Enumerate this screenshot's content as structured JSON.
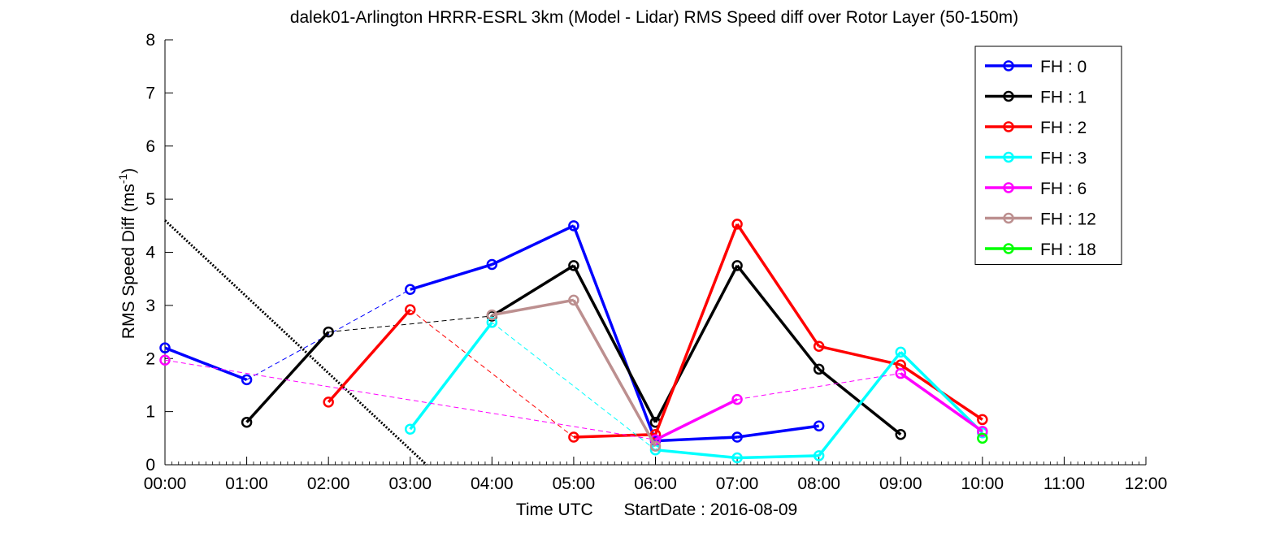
{
  "chart_data": {
    "type": "line",
    "title": "dalek01-Arlington HRRR-ESRL 3km (Model - Lidar) RMS Speed diff over Rotor Layer (50-150m)",
    "xlabel_main": "Time UTC",
    "xlabel_extra": "StartDate : 2016-08-09",
    "ylabel": "RMS Speed Diff (ms",
    "ylabel_sup": "-1",
    "ylabel_close": ")",
    "x_ticks": [
      "00:00",
      "01:00",
      "02:00",
      "03:00",
      "04:00",
      "05:00",
      "06:00",
      "07:00",
      "08:00",
      "09:00",
      "10:00",
      "11:00",
      "12:00"
    ],
    "y_ticks": [
      "0",
      "1",
      "2",
      "3",
      "4",
      "5",
      "6",
      "7",
      "8"
    ],
    "xlim": [
      0,
      12
    ],
    "ylim": [
      0,
      8
    ],
    "grid": false,
    "legend_position": "top-right",
    "series": [
      {
        "name": "FH : 0",
        "color": "#0000ff",
        "x": [
          0,
          1,
          2,
          3,
          4,
          5,
          6,
          7,
          8
        ],
        "y": [
          2.2,
          1.6,
          null,
          3.3,
          3.77,
          4.5,
          0.45,
          0.52,
          0.73
        ]
      },
      {
        "name": "FH : 1",
        "color": "#000000",
        "x": [
          1,
          2,
          4,
          5,
          6,
          7,
          8,
          9
        ],
        "y": [
          0.8,
          2.5,
          2.8,
          3.75,
          0.8,
          3.75,
          1.8,
          0.57
        ]
      },
      {
        "name": "FH : 2",
        "color": "#ff0000",
        "x": [
          2,
          3,
          5,
          6,
          7,
          8,
          9,
          10
        ],
        "y": [
          1.18,
          2.92,
          0.52,
          0.57,
          4.53,
          2.23,
          1.88,
          0.85
        ]
      },
      {
        "name": "FH : 3",
        "color": "#00ffff",
        "x": [
          3,
          4,
          6,
          7,
          8,
          9,
          10
        ],
        "y": [
          0.67,
          2.68,
          0.28,
          0.13,
          0.17,
          2.12,
          0.6
        ]
      },
      {
        "name": "FH : 6",
        "color": "#ff00ff",
        "x": [
          0,
          6,
          7,
          9,
          10
        ],
        "y": [
          1.97,
          0.47,
          1.23,
          1.72,
          0.63
        ]
      },
      {
        "name": "FH : 12",
        "color": "#bc8f8f",
        "x": [
          4,
          5,
          6
        ],
        "y": [
          2.82,
          3.1,
          0.35
        ]
      },
      {
        "name": "FH : 18",
        "color": "#00ff00",
        "x": [
          10
        ],
        "y": [
          0.5
        ]
      }
    ],
    "reference_line": {
      "style": "dotted",
      "color": "#000000",
      "x": [
        0,
        3.2
      ],
      "y": [
        4.6,
        0
      ]
    }
  }
}
